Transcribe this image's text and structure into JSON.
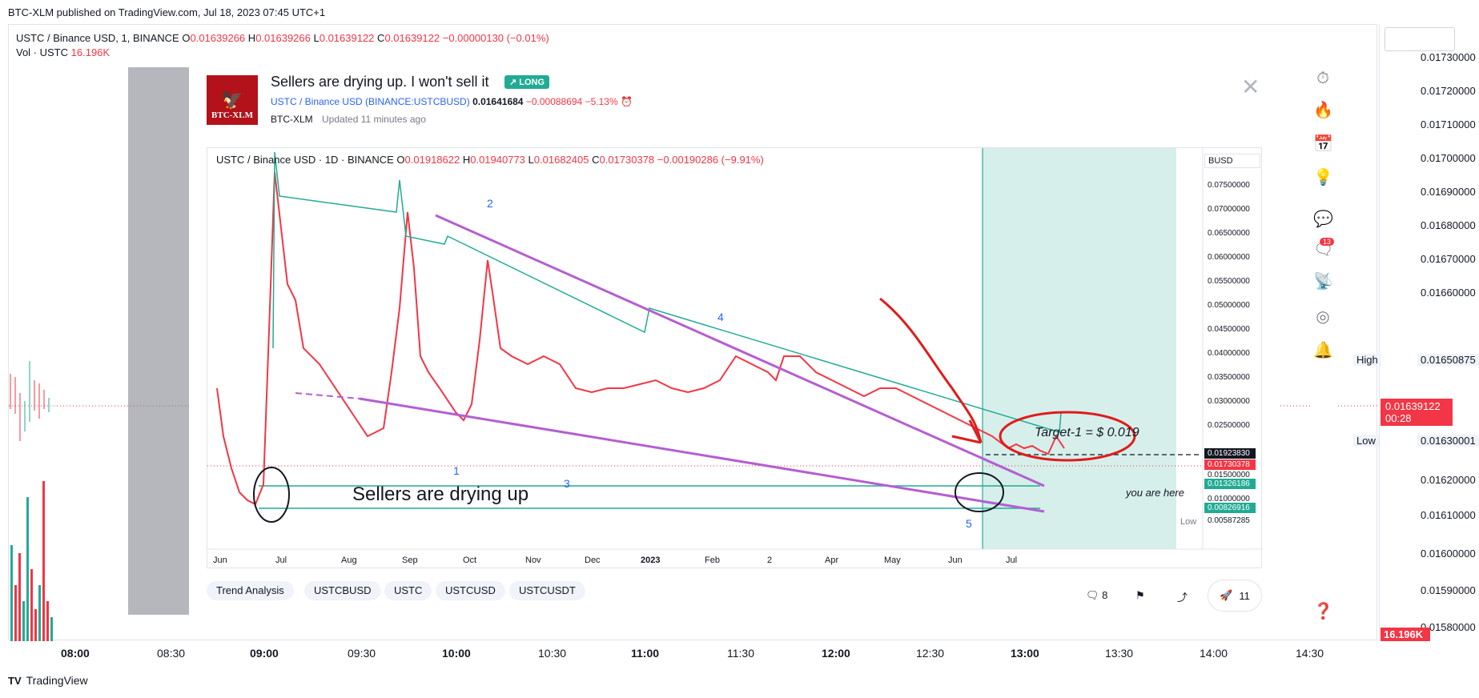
{
  "publish_line": "BTC-XLM published on TradingView.com, Jul 18, 2023 07:45 UTC+1",
  "bg_chart": {
    "legend_symbol": "USTC / Binance USD, 1, BINANCE",
    "legend_o_label": "O",
    "legend_o": "0.01639266",
    "legend_h_label": "H",
    "legend_h": "0.01639266",
    "legend_l_label": "L",
    "legend_l": "0.01639122",
    "legend_c_label": "C",
    "legend_c": "0.01639122",
    "legend_change": "−0.00000130 (−0.01%)",
    "vol_label": "Vol · USTC",
    "vol_value": "16.196K",
    "price_ticks": [
      "0.01730000",
      "0.01720000",
      "0.01710000",
      "0.01700000",
      "0.01690000",
      "0.01680000",
      "0.01670000",
      "0.01660000",
      "0.01650875",
      "0.01639122",
      "0.01630001",
      "0.01620000",
      "0.01610000",
      "0.01600000",
      "0.01590000",
      "0.01580000"
    ],
    "high_label": "High",
    "high_value": "0.01650875",
    "low_label": "Low",
    "low_value": "0.01630001",
    "last_value": "0.01639122",
    "countdown": "00:28",
    "vol_badge": "16.196K",
    "time_ticks": [
      "08:00",
      "08:30",
      "09:00",
      "09:30",
      "10:00",
      "10:30",
      "11:00",
      "11:30",
      "12:00",
      "12:30",
      "13:00",
      "13:30",
      "14:00",
      "14:30"
    ]
  },
  "idea": {
    "title": "Sellers are drying up. I won't sell it",
    "badge": "LONG",
    "avatar_text": "BTC-XLM",
    "symbol_full": "USTC / Binance USD",
    "symbol_code": "(BINANCE:USTCBUSD)",
    "price": "0.01641684",
    "change": "−0.00088694",
    "change_pct": "−5.13%",
    "author": "BTC-XLM",
    "updated": "Updated 11 minutes ago",
    "chart_legend_symbol": "USTC / Binance USD · 1D · BINANCE",
    "chart_legend_o": "0.01918622",
    "chart_legend_h": "0.01940773",
    "chart_legend_l": "0.01682405",
    "chart_legend_c": "0.01730378",
    "chart_legend_change": "−0.00190286 (−9.91%)",
    "currency": "BUSD",
    "axis_ticks": [
      "0.07500000",
      "0.07000000",
      "0.06500000",
      "0.06000000",
      "0.05500000",
      "0.05000000",
      "0.04500000",
      "0.04000000",
      "0.03500000",
      "0.03000000",
      "0.02500000",
      "0.01500000",
      "0.01000000"
    ],
    "price_badges": [
      {
        "value": "0.01923830",
        "color": "#131722"
      },
      {
        "value": "0.01730378",
        "color": "#f23645"
      },
      {
        "value": "0.01326186",
        "color": "#22ab94"
      },
      {
        "value": "0.00826916",
        "color": "#22ab94"
      },
      {
        "value": "0.00587285",
        "color": "#ffffff"
      }
    ],
    "low_tag": "Low",
    "x_ticks": [
      "Jun",
      "Jul",
      "Aug",
      "Sep",
      "Oct",
      "Nov",
      "Dec",
      "2023",
      "Feb",
      "2",
      "Apr",
      "May",
      "Jun",
      "Jul"
    ],
    "annotations": {
      "main_text": "Sellers are drying up",
      "target": "Target-1 = $ 0.019",
      "you_are_here": "you are here",
      "wave_1": "1",
      "wave_2": "2",
      "wave_3": "3",
      "wave_4": "4",
      "wave_5": "5"
    },
    "tags": [
      "Trend Analysis",
      "USTCBUSD",
      "USTC",
      "USTCUSD",
      "USTCUSDT"
    ],
    "comments": "8",
    "boosts": "11"
  },
  "tradingview_logo": "TradingView",
  "colors": {
    "up": "#22ab94",
    "down": "#f23645",
    "line_purple": "#b45fd0",
    "annotation_red": "#e01b1b",
    "zone": "#d6efea"
  },
  "rail_icons": [
    "clock-icon",
    "flame-icon",
    "calendar-icon",
    "lightbulb-icon",
    "chat-bubble-icon",
    "comments-icon",
    "idea-stream-icon",
    "broadcast-icon",
    "bell-icon",
    "help-icon"
  ],
  "rail_badge": "13"
}
